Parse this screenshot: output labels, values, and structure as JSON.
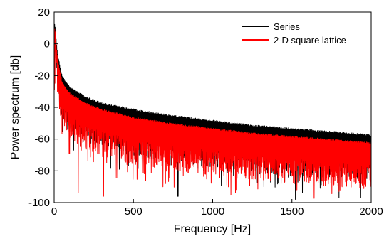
{
  "chart_data": {
    "type": "line",
    "xlabel": "Frequency [Hz]",
    "ylabel": "Power spectrum [db]",
    "xlim": [
      0,
      2000
    ],
    "ylim": [
      -100,
      20
    ],
    "xticks": [
      0,
      500,
      1000,
      1500,
      2000
    ],
    "yticks": [
      20,
      0,
      -20,
      -40,
      -60,
      -80,
      -100
    ],
    "grid": false,
    "legend_position": "top-right",
    "series": [
      {
        "name": "Series",
        "color": "#000000",
        "envelope_upper": [
          [
            5,
            13
          ],
          [
            20,
            -5
          ],
          [
            50,
            -20
          ],
          [
            100,
            -27
          ],
          [
            200,
            -33
          ],
          [
            300,
            -37
          ],
          [
            500,
            -41
          ],
          [
            750,
            -45
          ],
          [
            1000,
            -48
          ],
          [
            1250,
            -51
          ],
          [
            1500,
            -53
          ],
          [
            1750,
            -55
          ],
          [
            2000,
            -57
          ]
        ],
        "dips": [
          [
            120,
            -67
          ],
          [
            780,
            -96
          ],
          [
            1520,
            -98
          ],
          [
            1930,
            -97
          ]
        ]
      },
      {
        "name": "2-D square lattice",
        "color": "#ff0000",
        "envelope_upper": [
          [
            5,
            10
          ],
          [
            20,
            -8
          ],
          [
            50,
            -24
          ],
          [
            100,
            -31
          ],
          [
            200,
            -37
          ],
          [
            300,
            -41
          ],
          [
            500,
            -46
          ],
          [
            750,
            -50
          ],
          [
            1000,
            -53
          ],
          [
            1250,
            -56
          ],
          [
            1500,
            -58
          ],
          [
            1750,
            -60
          ],
          [
            2000,
            -62
          ]
        ],
        "dips": [
          [
            150,
            -94
          ],
          [
            310,
            -96
          ],
          [
            700,
            -88
          ],
          [
            1100,
            -90
          ],
          [
            1530,
            -92
          ],
          [
            2000,
            -95
          ]
        ]
      }
    ]
  }
}
